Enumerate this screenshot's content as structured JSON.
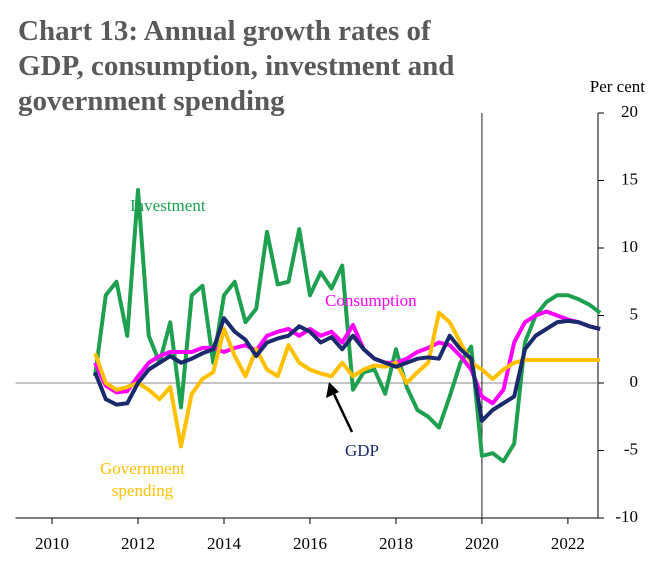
{
  "chart_data": {
    "type": "line",
    "title": "Chart 13: Annual growth rates of\nGDP, consumption, investment and\ngovernment spending",
    "y_axis_label": "Per cent",
    "x": [
      2011,
      2011.25,
      2011.5,
      2011.75,
      2012,
      2012.25,
      2012.5,
      2012.75,
      2013,
      2013.25,
      2013.5,
      2013.75,
      2014,
      2014.25,
      2014.5,
      2014.75,
      2015,
      2015.25,
      2015.5,
      2015.75,
      2016,
      2016.25,
      2016.5,
      2016.75,
      2017,
      2017.25,
      2017.5,
      2017.75,
      2018,
      2018.25,
      2018.5,
      2018.75,
      2019,
      2019.25,
      2019.5,
      2019.75,
      2020,
      2020.25,
      2020.5,
      2020.75,
      2021,
      2021.25,
      2021.5,
      2021.75,
      2022,
      2022.25,
      2022.5,
      2022.75
    ],
    "series": [
      {
        "name": "Investment",
        "color": "#1fa050",
        "values": [
          0.5,
          6.5,
          7.5,
          3.5,
          14.3,
          3.5,
          1.5,
          4.5,
          -1.8,
          6.5,
          7.2,
          1.5,
          6.5,
          7.5,
          4.5,
          5.5,
          11.2,
          7.3,
          7.5,
          11.4,
          6.5,
          8.2,
          7.0,
          8.7,
          -0.5,
          0.8,
          1.0,
          -0.8,
          2.5,
          -0.3,
          -2.0,
          -2.5,
          -3.3,
          -1.0,
          1.5,
          2.7,
          -5.4,
          -5.2,
          -5.8,
          -4.5,
          3.0,
          5.0,
          6.0,
          6.5,
          6.5,
          6.2,
          5.8,
          5.2
        ]
      },
      {
        "name": "Consumption",
        "color": "#ff00ff",
        "values": [
          1.5,
          -0.2,
          -0.7,
          -0.6,
          0.5,
          1.5,
          2.0,
          2.3,
          2.3,
          2.3,
          2.6,
          2.6,
          2.3,
          2.6,
          2.8,
          2.4,
          3.5,
          3.8,
          4.0,
          3.5,
          4.0,
          3.5,
          3.8,
          3.0,
          4.3,
          2.5,
          1.8,
          1.5,
          1.5,
          1.8,
          2.3,
          2.6,
          3.0,
          2.8,
          2.0,
          1.0,
          -1.0,
          -1.5,
          -0.5,
          3.0,
          4.5,
          5.0,
          5.3,
          5.0,
          4.7,
          4.5,
          4.2,
          4.0
        ]
      },
      {
        "name": "Government\nspending",
        "color": "#ffc000",
        "values": [
          2.2,
          0.0,
          -0.5,
          -0.3,
          0.0,
          -0.5,
          -1.2,
          -0.3,
          -4.7,
          -0.8,
          0.3,
          0.8,
          4.0,
          2.0,
          0.5,
          2.5,
          1.0,
          0.5,
          2.8,
          1.5,
          1.0,
          0.7,
          0.5,
          1.5,
          0.5,
          1.0,
          1.3,
          1.2,
          1.5,
          0.0,
          0.8,
          1.5,
          5.2,
          4.5,
          3.0,
          1.5,
          1.0,
          0.3,
          1.0,
          1.5,
          1.7,
          1.7,
          1.7,
          1.7,
          1.7,
          1.7,
          1.7,
          1.7
        ]
      },
      {
        "name": "GDP",
        "color": "#1a2a6c",
        "values": [
          0.8,
          -1.2,
          -1.6,
          -1.5,
          0.0,
          1.0,
          1.5,
          2.0,
          1.5,
          1.8,
          2.2,
          2.5,
          4.8,
          3.8,
          3.2,
          2.0,
          3.0,
          3.3,
          3.5,
          4.2,
          3.8,
          3.0,
          3.4,
          2.5,
          3.5,
          2.5,
          1.8,
          1.5,
          1.2,
          1.5,
          1.8,
          1.9,
          1.8,
          3.5,
          2.5,
          1.8,
          -2.8,
          -2.0,
          -1.5,
          -1.0,
          2.5,
          3.5,
          4.0,
          4.5,
          4.6,
          4.5,
          4.2,
          4.0
        ]
      }
    ],
    "xlim": [
      2009.15,
      2022.7
    ],
    "xticks": [
      2010,
      2012,
      2014,
      2016,
      2018,
      2020,
      2022
    ],
    "ylim": [
      -10,
      20
    ],
    "yticks": [
      -10,
      -5,
      0,
      5,
      10,
      15,
      20
    ],
    "vline": 2020
  }
}
